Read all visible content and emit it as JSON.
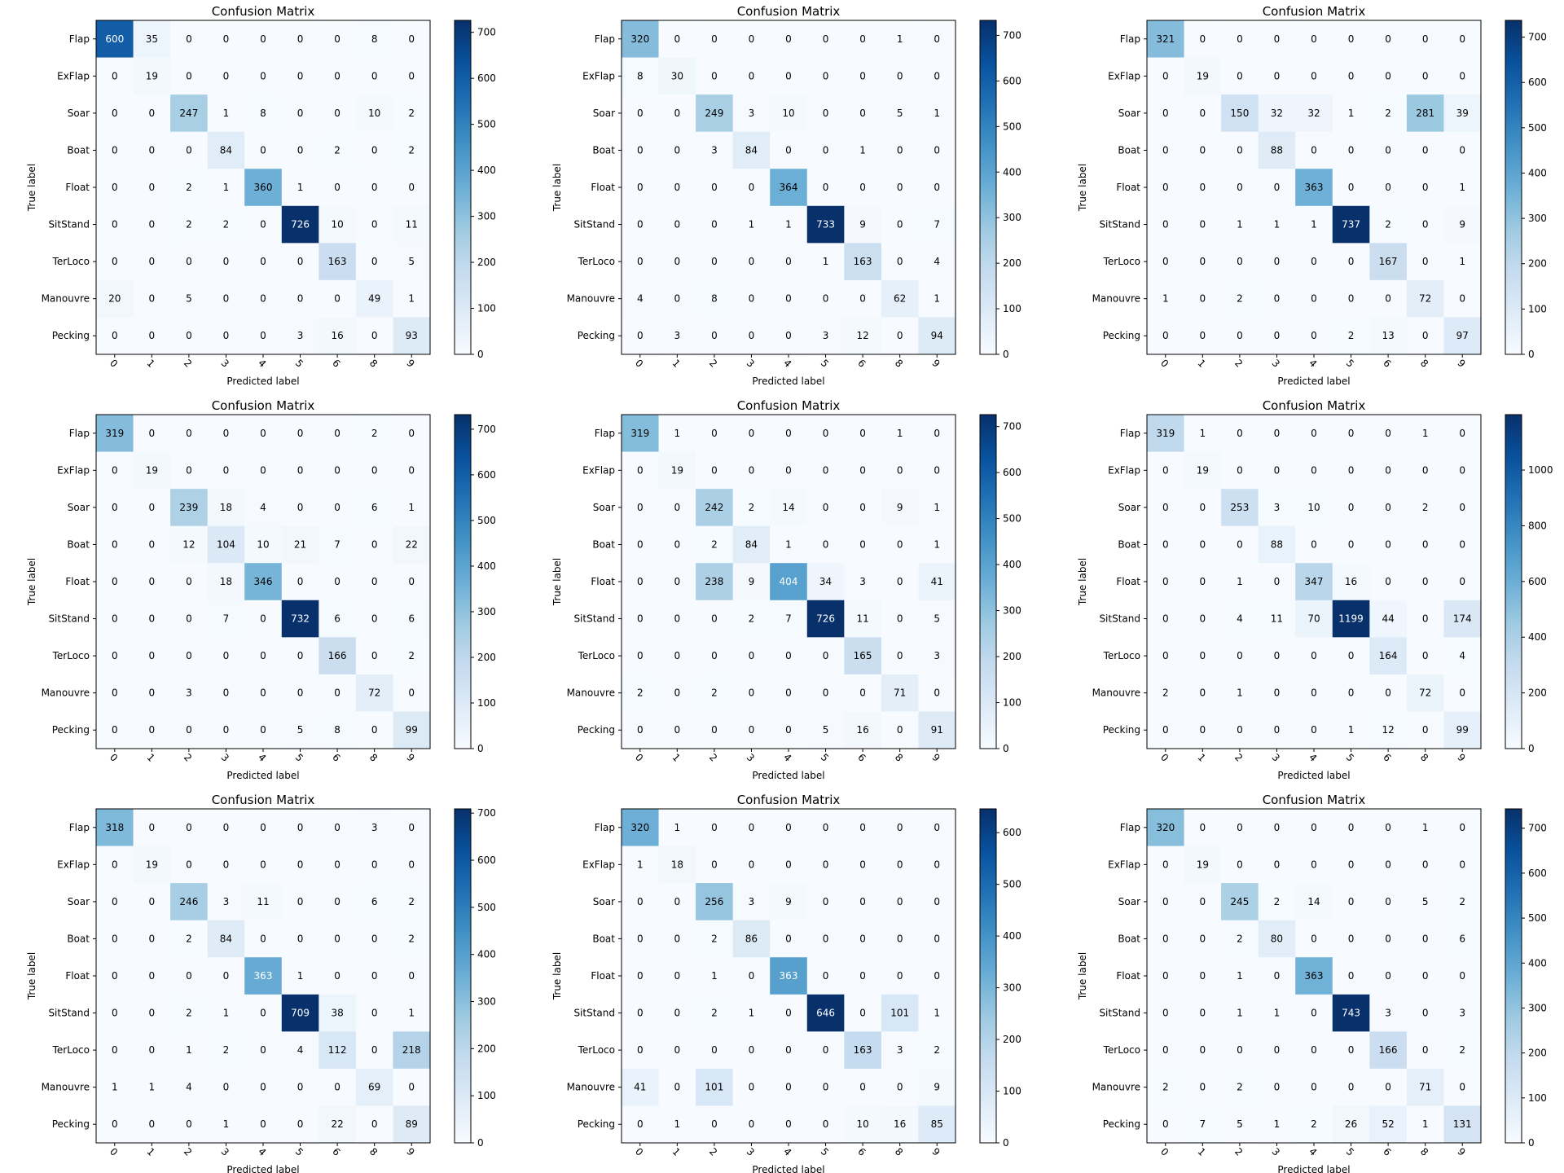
{
  "colormap": {
    "name": "Blues",
    "stops": [
      "#f7fbff",
      "#deebf7",
      "#c6dbef",
      "#9ecae1",
      "#6baed6",
      "#4292c6",
      "#2171b5",
      "#08519c",
      "#08306b"
    ]
  },
  "chart_data": [
    {
      "type": "heatmap",
      "title": "Confusion Matrix",
      "xlabel": "Predicted label",
      "ylabel": "True label",
      "x_ticks": [
        "0",
        "1",
        "2",
        "3",
        "4",
        "5",
        "6",
        "8",
        "9"
      ],
      "y_ticks": [
        "Flap",
        "ExFlap",
        "Soar",
        "Boat",
        "Float",
        "SitStand",
        "TerLoco",
        "Manouvre",
        "Pecking"
      ],
      "colorbar_ticks": [
        0,
        100,
        200,
        300,
        400,
        500,
        600,
        700
      ],
      "vmax": 726,
      "matrix": [
        [
          600,
          35,
          0,
          0,
          0,
          0,
          0,
          8,
          0
        ],
        [
          0,
          19,
          0,
          0,
          0,
          0,
          0,
          0,
          0
        ],
        [
          0,
          0,
          247,
          1,
          8,
          0,
          0,
          10,
          2
        ],
        [
          0,
          0,
          0,
          84,
          0,
          0,
          2,
          0,
          2
        ],
        [
          0,
          0,
          2,
          1,
          360,
          1,
          0,
          0,
          0
        ],
        [
          0,
          0,
          2,
          2,
          0,
          726,
          10,
          0,
          11
        ],
        [
          0,
          0,
          0,
          0,
          0,
          0,
          163,
          0,
          5
        ],
        [
          20,
          0,
          5,
          0,
          0,
          0,
          0,
          49,
          1
        ],
        [
          0,
          0,
          0,
          0,
          0,
          3,
          16,
          0,
          93
        ]
      ]
    },
    {
      "type": "heatmap",
      "title": "Confusion Matrix",
      "xlabel": "Predicted label",
      "ylabel": "True label",
      "x_ticks": [
        "0",
        "1",
        "2",
        "3",
        "4",
        "5",
        "6",
        "8",
        "9"
      ],
      "y_ticks": [
        "Flap",
        "ExFlap",
        "Soar",
        "Boat",
        "Float",
        "SitStand",
        "TerLoco",
        "Manouvre",
        "Pecking"
      ],
      "colorbar_ticks": [
        0,
        100,
        200,
        300,
        400,
        500,
        600,
        700
      ],
      "vmax": 733,
      "matrix": [
        [
          320,
          0,
          0,
          0,
          0,
          0,
          0,
          1,
          0
        ],
        [
          8,
          30,
          0,
          0,
          0,
          0,
          0,
          0,
          0
        ],
        [
          0,
          0,
          249,
          3,
          10,
          0,
          0,
          5,
          1
        ],
        [
          0,
          0,
          3,
          84,
          0,
          0,
          1,
          0,
          0
        ],
        [
          0,
          0,
          0,
          0,
          364,
          0,
          0,
          0,
          0
        ],
        [
          0,
          0,
          0,
          1,
          1,
          733,
          9,
          0,
          7
        ],
        [
          0,
          0,
          0,
          0,
          0,
          1,
          163,
          0,
          4
        ],
        [
          4,
          0,
          8,
          0,
          0,
          0,
          0,
          62,
          1
        ],
        [
          0,
          3,
          0,
          0,
          0,
          3,
          12,
          0,
          94
        ]
      ]
    },
    {
      "type": "heatmap",
      "title": "Confusion Matrix",
      "xlabel": "Predicted label",
      "ylabel": "True label",
      "x_ticks": [
        "0",
        "1",
        "2",
        "3",
        "4",
        "5",
        "6",
        "8",
        "9"
      ],
      "y_ticks": [
        "Flap",
        "ExFlap",
        "Soar",
        "Boat",
        "Float",
        "SitStand",
        "TerLoco",
        "Manouvre",
        "Pecking"
      ],
      "colorbar_ticks": [
        0,
        100,
        200,
        300,
        400,
        500,
        600,
        700
      ],
      "vmax": 737,
      "matrix": [
        [
          321,
          0,
          0,
          0,
          0,
          0,
          0,
          0,
          0
        ],
        [
          0,
          19,
          0,
          0,
          0,
          0,
          0,
          0,
          0
        ],
        [
          0,
          0,
          150,
          32,
          32,
          1,
          2,
          281,
          39
        ],
        [
          0,
          0,
          0,
          88,
          0,
          0,
          0,
          0,
          0
        ],
        [
          0,
          0,
          0,
          0,
          363,
          0,
          0,
          0,
          1
        ],
        [
          0,
          0,
          1,
          1,
          1,
          737,
          2,
          0,
          9
        ],
        [
          0,
          0,
          0,
          0,
          0,
          0,
          167,
          0,
          1
        ],
        [
          1,
          0,
          2,
          0,
          0,
          0,
          0,
          72,
          0
        ],
        [
          0,
          0,
          0,
          0,
          0,
          2,
          13,
          0,
          97
        ]
      ]
    },
    {
      "type": "heatmap",
      "title": "Confusion Matrix",
      "xlabel": "Predicted label",
      "ylabel": "True label",
      "x_ticks": [
        "0",
        "1",
        "2",
        "3",
        "4",
        "5",
        "6",
        "8",
        "9"
      ],
      "y_ticks": [
        "Flap",
        "ExFlap",
        "Soar",
        "Boat",
        "Float",
        "SitStand",
        "TerLoco",
        "Manouvre",
        "Pecking"
      ],
      "colorbar_ticks": [
        0,
        100,
        200,
        300,
        400,
        500,
        600,
        700
      ],
      "vmax": 732,
      "matrix": [
        [
          319,
          0,
          0,
          0,
          0,
          0,
          0,
          2,
          0
        ],
        [
          0,
          19,
          0,
          0,
          0,
          0,
          0,
          0,
          0
        ],
        [
          0,
          0,
          239,
          18,
          4,
          0,
          0,
          6,
          1
        ],
        [
          0,
          0,
          12,
          104,
          10,
          21,
          7,
          0,
          22
        ],
        [
          0,
          0,
          0,
          18,
          346,
          0,
          0,
          0,
          0
        ],
        [
          0,
          0,
          0,
          7,
          0,
          732,
          6,
          0,
          6
        ],
        [
          0,
          0,
          0,
          0,
          0,
          0,
          166,
          0,
          2
        ],
        [
          0,
          0,
          3,
          0,
          0,
          0,
          0,
          72,
          0
        ],
        [
          0,
          0,
          0,
          0,
          0,
          5,
          8,
          0,
          99
        ]
      ]
    },
    {
      "type": "heatmap",
      "title": "Confusion Matrix",
      "xlabel": "Predicted label",
      "ylabel": "True label",
      "x_ticks": [
        "0",
        "1",
        "2",
        "3",
        "4",
        "5",
        "6",
        "8",
        "9"
      ],
      "y_ticks": [
        "Flap",
        "ExFlap",
        "Soar",
        "Boat",
        "Float",
        "SitStand",
        "TerLoco",
        "Manouvre",
        "Pecking"
      ],
      "colorbar_ticks": [
        0,
        100,
        200,
        300,
        400,
        500,
        600,
        700
      ],
      "vmax": 726,
      "matrix": [
        [
          319,
          1,
          0,
          0,
          0,
          0,
          0,
          1,
          0
        ],
        [
          0,
          19,
          0,
          0,
          0,
          0,
          0,
          0,
          0
        ],
        [
          0,
          0,
          242,
          2,
          14,
          0,
          0,
          9,
          1
        ],
        [
          0,
          0,
          2,
          84,
          1,
          0,
          0,
          0,
          1
        ],
        [
          0,
          0,
          238,
          9,
          404,
          34,
          3,
          0,
          41
        ],
        [
          0,
          0,
          0,
          2,
          7,
          726,
          11,
          0,
          5
        ],
        [
          0,
          0,
          0,
          0,
          0,
          0,
          165,
          0,
          3
        ],
        [
          2,
          0,
          2,
          0,
          0,
          0,
          0,
          71,
          0
        ],
        [
          0,
          0,
          0,
          0,
          0,
          5,
          16,
          0,
          91
        ]
      ]
    },
    {
      "type": "heatmap",
      "title": "Confusion Matrix",
      "xlabel": "Predicted label",
      "ylabel": "True label",
      "x_ticks": [
        "0",
        "1",
        "2",
        "3",
        "4",
        "5",
        "6",
        "8",
        "9"
      ],
      "y_ticks": [
        "Flap",
        "ExFlap",
        "Soar",
        "Boat",
        "Float",
        "SitStand",
        "TerLoco",
        "Manouvre",
        "Pecking"
      ],
      "colorbar_ticks": [
        0,
        200,
        400,
        600,
        800,
        1000
      ],
      "vmax": 1199,
      "matrix": [
        [
          319,
          1,
          0,
          0,
          0,
          0,
          0,
          1,
          0
        ],
        [
          0,
          19,
          0,
          0,
          0,
          0,
          0,
          0,
          0
        ],
        [
          0,
          0,
          253,
          3,
          10,
          0,
          0,
          2,
          0
        ],
        [
          0,
          0,
          0,
          88,
          0,
          0,
          0,
          0,
          0
        ],
        [
          0,
          0,
          1,
          0,
          347,
          16,
          0,
          0,
          0
        ],
        [
          0,
          0,
          4,
          11,
          70,
          1199,
          44,
          0,
          174
        ],
        [
          0,
          0,
          0,
          0,
          0,
          0,
          164,
          0,
          4
        ],
        [
          2,
          0,
          1,
          0,
          0,
          0,
          0,
          72,
          0
        ],
        [
          0,
          0,
          0,
          0,
          0,
          1,
          12,
          0,
          99
        ]
      ]
    },
    {
      "type": "heatmap",
      "title": "Confusion Matrix",
      "xlabel": "Predicted label",
      "ylabel": "True label",
      "x_ticks": [
        "0",
        "1",
        "2",
        "3",
        "4",
        "5",
        "6",
        "8",
        "9"
      ],
      "y_ticks": [
        "Flap",
        "ExFlap",
        "Soar",
        "Boat",
        "Float",
        "SitStand",
        "TerLoco",
        "Manouvre",
        "Pecking"
      ],
      "colorbar_ticks": [
        0,
        100,
        200,
        300,
        400,
        500,
        600,
        700
      ],
      "vmax": 709,
      "matrix": [
        [
          318,
          0,
          0,
          0,
          0,
          0,
          0,
          3,
          0
        ],
        [
          0,
          19,
          0,
          0,
          0,
          0,
          0,
          0,
          0
        ],
        [
          0,
          0,
          246,
          3,
          11,
          0,
          0,
          6,
          2
        ],
        [
          0,
          0,
          2,
          84,
          0,
          0,
          0,
          0,
          2
        ],
        [
          0,
          0,
          0,
          0,
          363,
          1,
          0,
          0,
          0
        ],
        [
          0,
          0,
          2,
          1,
          0,
          709,
          38,
          0,
          1
        ],
        [
          0,
          0,
          1,
          2,
          0,
          4,
          112,
          0,
          218
        ],
        [
          1,
          1,
          4,
          0,
          0,
          0,
          0,
          69,
          0
        ],
        [
          0,
          0,
          0,
          1,
          0,
          0,
          22,
          0,
          89
        ]
      ]
    },
    {
      "type": "heatmap",
      "title": "Confusion Matrix",
      "xlabel": "Predicted label",
      "ylabel": "True label",
      "x_ticks": [
        "0",
        "1",
        "2",
        "3",
        "4",
        "5",
        "6",
        "8",
        "9"
      ],
      "y_ticks": [
        "Flap",
        "ExFlap",
        "Soar",
        "Boat",
        "Float",
        "SitStand",
        "TerLoco",
        "Manouvre",
        "Pecking"
      ],
      "colorbar_ticks": [
        0,
        100,
        200,
        300,
        400,
        500,
        600
      ],
      "vmax": 646,
      "matrix": [
        [
          320,
          1,
          0,
          0,
          0,
          0,
          0,
          0,
          0
        ],
        [
          1,
          18,
          0,
          0,
          0,
          0,
          0,
          0,
          0
        ],
        [
          0,
          0,
          256,
          3,
          9,
          0,
          0,
          0,
          0
        ],
        [
          0,
          0,
          2,
          86,
          0,
          0,
          0,
          0,
          0
        ],
        [
          0,
          0,
          1,
          0,
          363,
          0,
          0,
          0,
          0
        ],
        [
          0,
          0,
          2,
          1,
          0,
          646,
          0,
          101,
          1
        ],
        [
          0,
          0,
          0,
          0,
          0,
          0,
          163,
          3,
          2
        ],
        [
          41,
          0,
          101,
          0,
          0,
          0,
          0,
          0,
          9
        ],
        [
          0,
          1,
          0,
          0,
          0,
          0,
          10,
          16,
          85
        ]
      ]
    },
    {
      "type": "heatmap",
      "title": "Confusion Matrix",
      "xlabel": "Predicted label",
      "ylabel": "True label",
      "x_ticks": [
        "0",
        "1",
        "2",
        "3",
        "4",
        "5",
        "6",
        "8",
        "9"
      ],
      "y_ticks": [
        "Flap",
        "ExFlap",
        "Soar",
        "Boat",
        "Float",
        "SitStand",
        "TerLoco",
        "Manouvre",
        "Pecking"
      ],
      "colorbar_ticks": [
        0,
        100,
        200,
        300,
        400,
        500,
        600,
        700
      ],
      "vmax": 743,
      "matrix": [
        [
          320,
          0,
          0,
          0,
          0,
          0,
          0,
          1,
          0
        ],
        [
          0,
          19,
          0,
          0,
          0,
          0,
          0,
          0,
          0
        ],
        [
          0,
          0,
          245,
          2,
          14,
          0,
          0,
          5,
          2
        ],
        [
          0,
          0,
          2,
          80,
          0,
          0,
          0,
          0,
          6
        ],
        [
          0,
          0,
          1,
          0,
          363,
          0,
          0,
          0,
          0
        ],
        [
          0,
          0,
          1,
          1,
          0,
          743,
          3,
          0,
          3
        ],
        [
          0,
          0,
          0,
          0,
          0,
          0,
          166,
          0,
          2
        ],
        [
          2,
          0,
          2,
          0,
          0,
          0,
          0,
          71,
          0
        ],
        [
          0,
          7,
          5,
          1,
          2,
          26,
          52,
          1,
          131
        ]
      ]
    }
  ]
}
